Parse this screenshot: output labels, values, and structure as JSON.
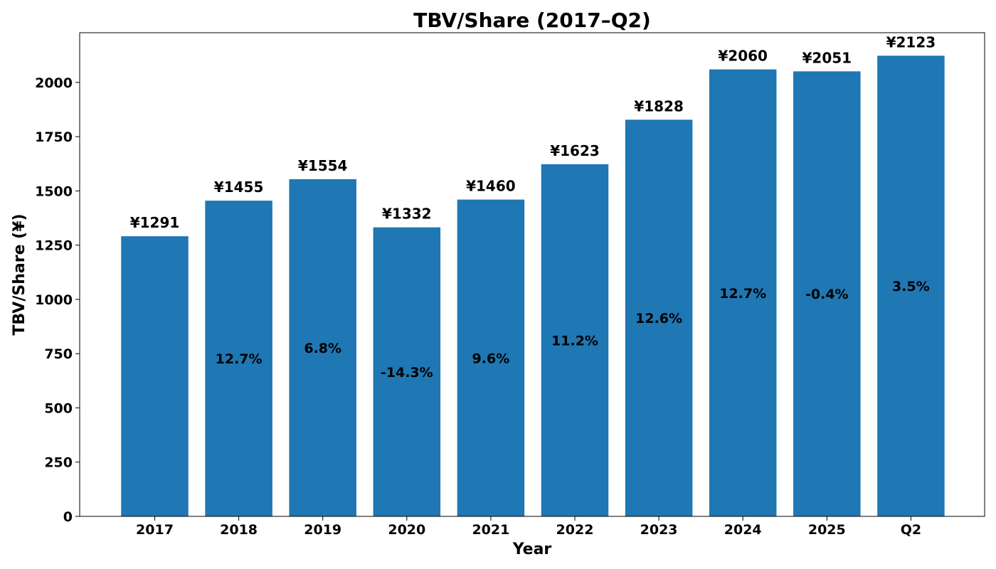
{
  "chart_data": {
    "type": "bar",
    "title": "TBV/Share (2017–Q2)",
    "xlabel": "Year",
    "ylabel": "TBV/Share (¥)",
    "categories": [
      "2017",
      "2018",
      "2019",
      "2020",
      "2021",
      "2022",
      "2023",
      "2024",
      "2025",
      "Q2"
    ],
    "values": [
      1291,
      1455,
      1554,
      1332,
      1460,
      1623,
      1828,
      2060,
      2051,
      2123
    ],
    "value_labels": [
      "¥1291",
      "¥1455",
      "¥1554",
      "¥1332",
      "¥1460",
      "¥1623",
      "¥1828",
      "¥2060",
      "¥2051",
      "¥2123"
    ],
    "growth_labels": [
      "",
      "12.7%",
      "6.8%",
      "-14.3%",
      "9.6%",
      "11.2%",
      "12.6%",
      "12.7%",
      "-0.4%",
      "3.5%"
    ],
    "yticks": [
      0,
      250,
      500,
      750,
      1000,
      1250,
      1500,
      1750,
      2000
    ],
    "ylim": [
      0,
      2229
    ],
    "grid": false,
    "bar_color": "#1f77b4"
  }
}
